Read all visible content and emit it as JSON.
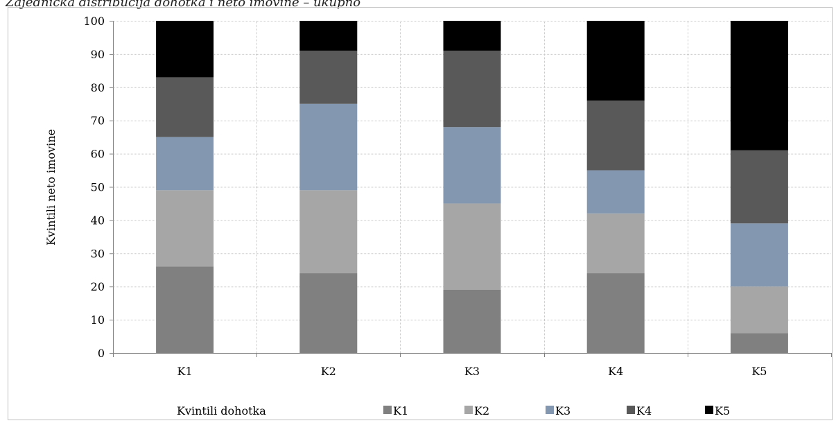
{
  "chart_data": {
    "type": "bar",
    "stacked": true,
    "title": "Zajednička distribucija dohotka i neto imovine – ukupno",
    "xlabel": "Kvintili dohotka",
    "ylabel": "Kvintili neto imovine",
    "ylim": [
      0,
      100
    ],
    "yticks": [
      0,
      10,
      20,
      30,
      40,
      50,
      60,
      70,
      80,
      90,
      100
    ],
    "grid": true,
    "legend_placement": "bottom",
    "categories": [
      "K1",
      "K2",
      "K3",
      "K4",
      "K5"
    ],
    "series": [
      {
        "name": "K1",
        "color": "#808080",
        "values": [
          26,
          24,
          19,
          24,
          6
        ]
      },
      {
        "name": "K2",
        "color": "#a6a6a6",
        "values": [
          23,
          25,
          26,
          18,
          14
        ]
      },
      {
        "name": "K3",
        "color": "#8497b0",
        "values": [
          16,
          26,
          23,
          13,
          19
        ]
      },
      {
        "name": "K4",
        "color": "#595959",
        "values": [
          18,
          16,
          23,
          21,
          22
        ]
      },
      {
        "name": "K5",
        "color": "#000000",
        "values": [
          17,
          9,
          9,
          24,
          39
        ]
      }
    ]
  }
}
